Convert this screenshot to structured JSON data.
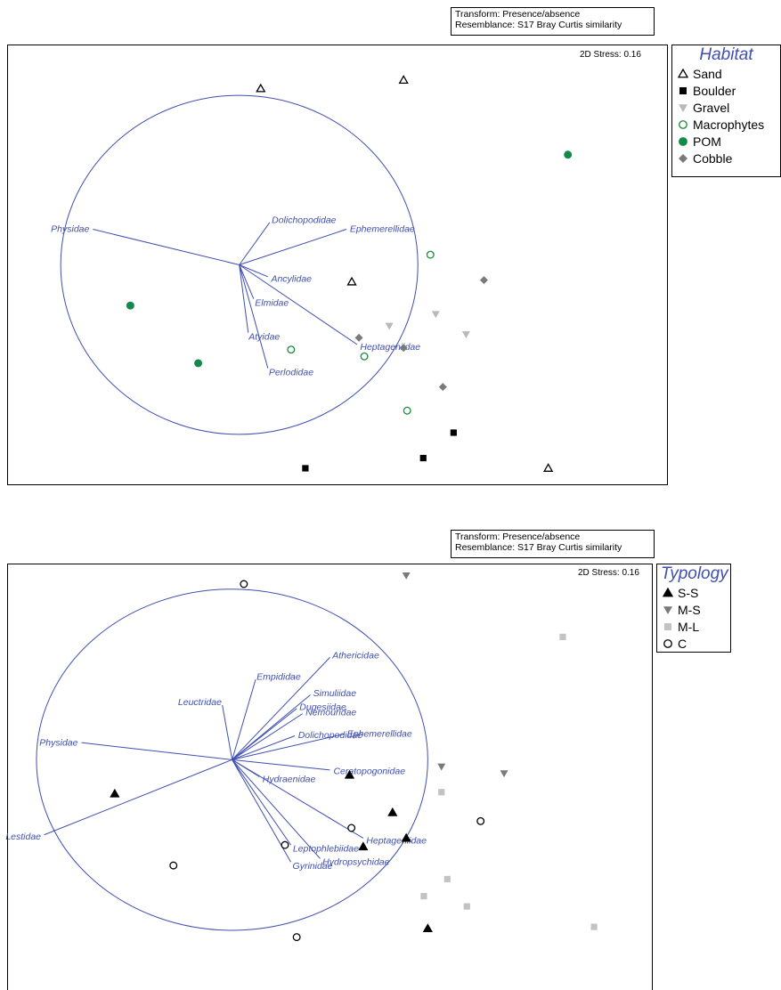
{
  "charts": [
    {
      "transform_text": "Transform: Presence/absence",
      "resemblance_text": "Resemblance: S17 Bray Curtis similarity",
      "stress_text": "2D Stress: 0.16",
      "legend": {
        "title": "Habitat",
        "items": [
          {
            "label": "Sand",
            "symbol": "triangle-open",
            "color": "#000000"
          },
          {
            "label": "Boulder",
            "symbol": "square-filled",
            "color": "#000000"
          },
          {
            "label": "Gravel",
            "symbol": "triangle-down-filled",
            "color": "#b9b9b9"
          },
          {
            "label": "Macrophytes",
            "symbol": "circle-open",
            "color": "#1a8a3a"
          },
          {
            "label": "POM",
            "symbol": "circle-filled",
            "color": "#13894a"
          },
          {
            "label": "Cobble",
            "symbol": "diamond-filled",
            "color": "#7a7a7a"
          }
        ]
      }
    },
    {
      "transform_text": "Transform: Presence/absence",
      "resemblance_text": "Resemblance: S17 Bray Curtis similarity",
      "stress_text": "2D Stress: 0.16",
      "legend": {
        "title": "Typology",
        "items": [
          {
            "label": "S-S",
            "symbol": "triangle-filled",
            "color": "#000000"
          },
          {
            "label": "M-S",
            "symbol": "triangle-down-filled",
            "color": "#7a7a7a"
          },
          {
            "label": "M-L",
            "symbol": "square-filled",
            "color": "#c3c3c3"
          },
          {
            "label": "C",
            "symbol": "circle-open",
            "color": "#000000"
          }
        ]
      }
    }
  ],
  "chart_data": [
    {
      "type": "scatter",
      "title": "",
      "xlabel": "",
      "ylabel": "",
      "xlim": [
        -1.3,
        2.4
      ],
      "ylim": [
        -1.3,
        1.3
      ],
      "circle_radius": 1.0,
      "vectors": [
        {
          "label": "Physidae",
          "x": -0.82,
          "y": 0.21
        },
        {
          "label": "Dolichopodidae",
          "x": 0.17,
          "y": 0.25
        },
        {
          "label": "Ephemerellidae",
          "x": 0.6,
          "y": 0.21
        },
        {
          "label": "Ancylidae",
          "x": 0.16,
          "y": -0.07
        },
        {
          "label": "Elmidae",
          "x": 0.08,
          "y": -0.2
        },
        {
          "label": "Atyidae",
          "x": 0.05,
          "y": -0.4
        },
        {
          "label": "Perlodidae",
          "x": 0.16,
          "y": -0.61
        },
        {
          "label": "Heptageniidae",
          "x": 0.66,
          "y": -0.47
        }
      ],
      "series": [
        {
          "name": "Sand",
          "points": [
            [
              0.12,
              1.04
            ],
            [
              0.92,
              1.09
            ],
            [
              0.63,
              -0.1
            ],
            [
              1.73,
              -1.2
            ]
          ]
        },
        {
          "name": "Boulder",
          "points": [
            [
              0.37,
              -1.2
            ],
            [
              1.03,
              -1.14
            ],
            [
              1.2,
              -0.99
            ]
          ]
        },
        {
          "name": "Gravel",
          "points": [
            [
              0.84,
              -0.36
            ],
            [
              1.1,
              -0.29
            ],
            [
              1.27,
              -0.41
            ]
          ]
        },
        {
          "name": "Macrophytes",
          "points": [
            [
              0.29,
              -0.5
            ],
            [
              0.7,
              -0.54
            ],
            [
              1.07,
              0.06
            ],
            [
              0.94,
              -0.86
            ]
          ]
        },
        {
          "name": "POM",
          "points": [
            [
              -0.61,
              -0.24
            ],
            [
              -0.23,
              -0.58
            ],
            [
              1.84,
              0.65
            ]
          ]
        },
        {
          "name": "Cobble",
          "points": [
            [
              0.67,
              -0.43
            ],
            [
              0.92,
              -0.49
            ],
            [
              1.14,
              -0.72
            ],
            [
              1.37,
              -0.09
            ]
          ]
        }
      ]
    },
    {
      "type": "scatter",
      "title": "",
      "xlabel": "",
      "ylabel": "",
      "xlim": [
        -1.15,
        2.15
      ],
      "ylim": [
        -1.35,
        1.15
      ],
      "circle_radius": 1.0,
      "vectors": [
        {
          "label": "Athericidae",
          "x": 0.5,
          "y": 0.6
        },
        {
          "label": "Empididae",
          "x": 0.12,
          "y": 0.47
        },
        {
          "label": "Simuliidae",
          "x": 0.4,
          "y": 0.38
        },
        {
          "label": "Leuctridae",
          "x": -0.05,
          "y": 0.32
        },
        {
          "label": "Dugesiidae",
          "x": 0.33,
          "y": 0.3
        },
        {
          "label": "Nemouridae",
          "x": 0.36,
          "y": 0.27
        },
        {
          "label": "Dolichopodidae",
          "x": 0.32,
          "y": 0.14
        },
        {
          "label": "Ephemerellidae",
          "x": 0.57,
          "y": 0.15
        },
        {
          "label": "Physidae",
          "x": -0.77,
          "y": 0.1
        },
        {
          "label": "Ceratopogonidae",
          "x": 0.5,
          "y": -0.06
        },
        {
          "label": "Hydraenidae",
          "x": 0.14,
          "y": -0.1
        },
        {
          "label": "Heptageniidae",
          "x": 0.67,
          "y": -0.46
        },
        {
          "label": "Leptophlebiidae",
          "x": 0.3,
          "y": -0.5
        },
        {
          "label": "Hydropsychidae",
          "x": 0.45,
          "y": -0.58
        },
        {
          "label": "Gyrinidae",
          "x": 0.3,
          "y": -0.6
        },
        {
          "label": "Lestidae",
          "x": -0.96,
          "y": -0.44
        }
      ],
      "series": [
        {
          "name": "S-S",
          "points": [
            [
              -0.6,
              -0.2
            ],
            [
              0.6,
              -0.09
            ],
            [
              0.82,
              -0.31
            ],
            [
              0.67,
              -0.51
            ],
            [
              0.89,
              -0.46
            ],
            [
              1.0,
              -0.99
            ]
          ]
        },
        {
          "name": "M-S",
          "points": [
            [
              0.89,
              1.08
            ],
            [
              1.07,
              -0.04
            ],
            [
              1.39,
              -0.08
            ]
          ]
        },
        {
          "name": "M-L",
          "points": [
            [
              1.69,
              0.72
            ],
            [
              1.07,
              -0.19
            ],
            [
              1.1,
              -0.7
            ],
            [
              0.98,
              -0.8
            ],
            [
              1.2,
              -0.86
            ],
            [
              1.85,
              -0.98
            ]
          ]
        },
        {
          "name": "C",
          "points": [
            [
              0.06,
              1.03
            ],
            [
              0.61,
              -0.4
            ],
            [
              0.27,
              -0.5
            ],
            [
              -0.3,
              -0.62
            ],
            [
              1.27,
              -0.36
            ],
            [
              0.33,
              -1.04
            ]
          ]
        }
      ]
    }
  ]
}
